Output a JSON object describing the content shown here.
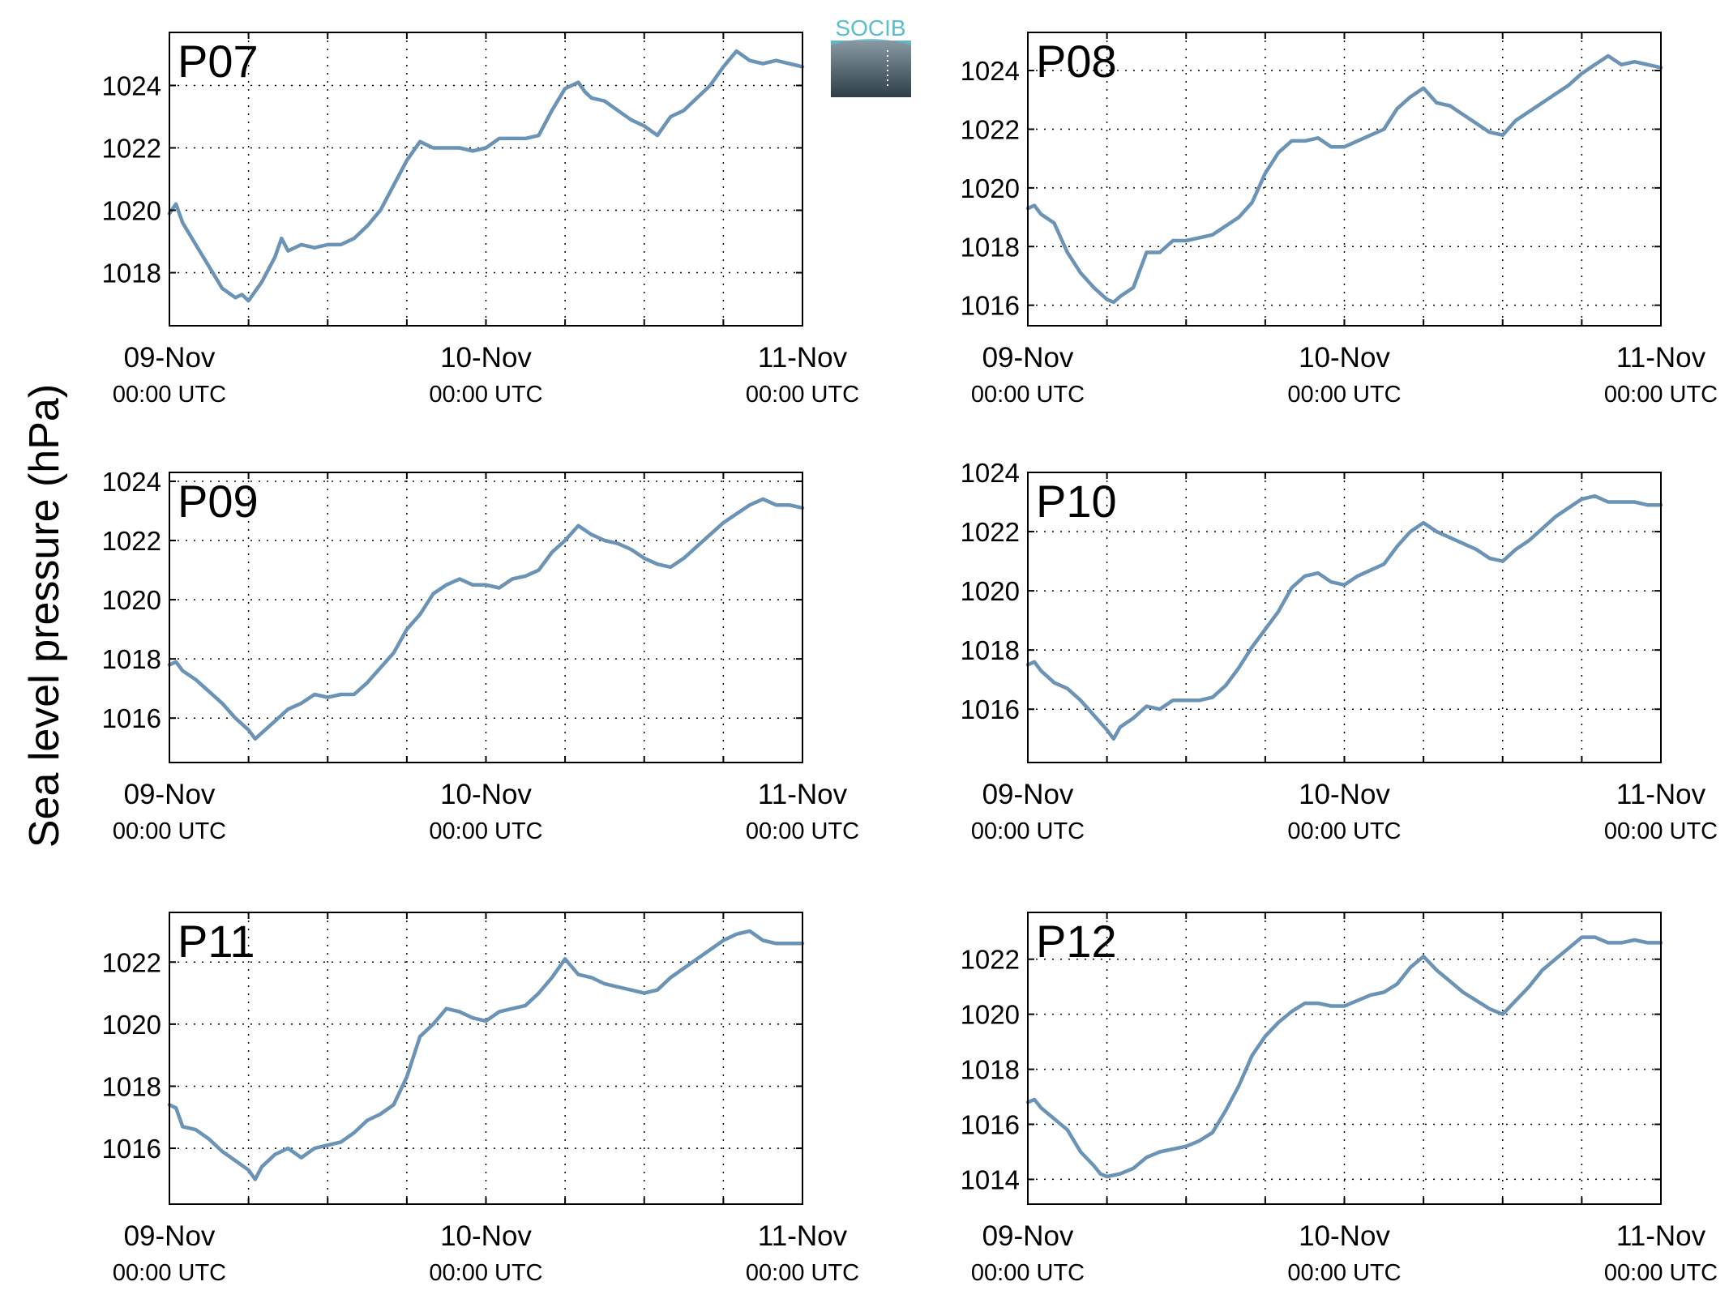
{
  "ylabel": "Sea level pressure (hPa)",
  "logo": {
    "text": "SOCIB",
    "text_color": "#5bbccc",
    "fill_top": "#8a9aa4",
    "fill_bottom": "#2e3e48"
  },
  "colors": {
    "line": "#6a93b5",
    "panel_label": "#ff0000",
    "axes": "#000000"
  },
  "xticks": [
    {
      "date": "09-Nov",
      "time": "00:00 UTC"
    },
    {
      "date": "10-Nov",
      "time": "00:00 UTC"
    },
    {
      "date": "11-Nov",
      "time": "00:00 UTC"
    }
  ],
  "chart_data": [
    {
      "type": "line",
      "label": "P07",
      "xlim": [
        0,
        48
      ],
      "ylim": [
        1016.3,
        1025.7
      ],
      "yticks": [
        1018,
        1020,
        1022,
        1024
      ],
      "grid": true,
      "x": [
        0,
        0.5,
        1,
        2,
        3,
        4,
        5,
        5.5,
        6,
        7,
        8,
        8.5,
        9,
        10,
        11,
        12,
        13,
        14,
        15,
        16,
        17,
        18,
        19,
        20,
        21,
        22,
        23,
        24,
        25,
        26,
        27,
        28,
        29,
        30,
        31,
        31.5,
        32,
        33,
        34,
        35,
        36,
        37,
        38,
        39,
        40,
        41,
        42,
        43,
        44,
        45,
        46,
        47,
        48
      ],
      "values": [
        1019.9,
        1020.2,
        1019.6,
        1018.9,
        1018.2,
        1017.5,
        1017.2,
        1017.3,
        1017.1,
        1017.7,
        1018.5,
        1019.1,
        1018.7,
        1018.9,
        1018.8,
        1018.9,
        1018.9,
        1019.1,
        1019.5,
        1020.0,
        1020.8,
        1021.6,
        1022.2,
        1022.0,
        1022.0,
        1022.0,
        1021.9,
        1022.0,
        1022.3,
        1022.3,
        1022.3,
        1022.4,
        1023.2,
        1023.9,
        1024.1,
        1023.8,
        1023.6,
        1023.5,
        1023.2,
        1022.9,
        1022.7,
        1022.4,
        1023.0,
        1023.2,
        1023.6,
        1024.0,
        1024.6,
        1025.1,
        1024.8,
        1024.7,
        1024.8,
        1024.7,
        1024.6
      ]
    },
    {
      "type": "line",
      "label": "P08",
      "xlim": [
        0,
        48
      ],
      "ylim": [
        1015.3,
        1025.3
      ],
      "yticks": [
        1016,
        1018,
        1020,
        1022,
        1024
      ],
      "grid": true,
      "x": [
        0,
        0.5,
        1,
        2,
        3,
        4,
        5,
        6,
        6.5,
        7,
        8,
        9,
        10,
        11,
        12,
        13,
        14,
        15,
        16,
        17,
        18,
        19,
        20,
        21,
        22,
        23,
        24,
        25,
        26,
        27,
        28,
        29,
        30,
        31,
        32,
        33,
        34,
        35,
        36,
        37,
        38,
        39,
        40,
        41,
        42,
        43,
        44,
        45,
        46,
        47,
        48
      ],
      "values": [
        1019.3,
        1019.4,
        1019.1,
        1018.8,
        1017.8,
        1017.1,
        1016.6,
        1016.2,
        1016.1,
        1016.3,
        1016.6,
        1017.8,
        1017.8,
        1018.2,
        1018.2,
        1018.3,
        1018.4,
        1018.7,
        1019.0,
        1019.5,
        1020.5,
        1021.2,
        1021.6,
        1021.6,
        1021.7,
        1021.4,
        1021.4,
        1021.6,
        1021.8,
        1022.0,
        1022.7,
        1023.1,
        1023.4,
        1022.9,
        1022.8,
        1022.5,
        1022.2,
        1021.9,
        1021.8,
        1022.3,
        1022.6,
        1022.9,
        1023.2,
        1023.5,
        1023.9,
        1024.2,
        1024.5,
        1024.2,
        1024.3,
        1024.2,
        1024.1
      ]
    },
    {
      "type": "line",
      "label": "P09",
      "xlim": [
        0,
        48
      ],
      "ylim": [
        1014.5,
        1024.3
      ],
      "yticks": [
        1016,
        1018,
        1020,
        1022,
        1024
      ],
      "grid": true,
      "x": [
        0,
        0.5,
        1,
        2,
        3,
        4,
        5,
        6,
        6.5,
        7,
        8,
        9,
        10,
        11,
        12,
        13,
        14,
        15,
        16,
        17,
        18,
        19,
        20,
        21,
        22,
        23,
        24,
        25,
        26,
        27,
        28,
        29,
        30,
        31,
        32,
        33,
        34,
        35,
        36,
        37,
        38,
        39,
        40,
        41,
        42,
        43,
        44,
        45,
        46,
        47,
        48
      ],
      "values": [
        1017.8,
        1017.9,
        1017.6,
        1017.3,
        1016.9,
        1016.5,
        1016.0,
        1015.6,
        1015.3,
        1015.5,
        1015.9,
        1016.3,
        1016.5,
        1016.8,
        1016.7,
        1016.8,
        1016.8,
        1017.2,
        1017.7,
        1018.2,
        1019.0,
        1019.5,
        1020.2,
        1020.5,
        1020.7,
        1020.5,
        1020.5,
        1020.4,
        1020.7,
        1020.8,
        1021.0,
        1021.6,
        1022.0,
        1022.5,
        1022.2,
        1022.0,
        1021.9,
        1021.7,
        1021.4,
        1021.2,
        1021.1,
        1021.4,
        1021.8,
        1022.2,
        1022.6,
        1022.9,
        1023.2,
        1023.4,
        1023.2,
        1023.2,
        1023.1
      ]
    },
    {
      "type": "line",
      "label": "P10",
      "xlim": [
        0,
        48
      ],
      "ylim": [
        1014.2,
        1024.0
      ],
      "yticks": [
        1016,
        1018,
        1020,
        1022,
        1024
      ],
      "grid": true,
      "x": [
        0,
        0.5,
        1,
        2,
        3,
        4,
        5,
        6,
        6.5,
        7,
        8,
        9,
        10,
        11,
        12,
        13,
        14,
        15,
        16,
        17,
        18,
        19,
        20,
        21,
        22,
        23,
        24,
        25,
        26,
        27,
        28,
        29,
        30,
        31,
        32,
        33,
        34,
        35,
        36,
        37,
        38,
        39,
        40,
        41,
        42,
        43,
        44,
        45,
        46,
        47,
        48
      ],
      "values": [
        1017.5,
        1017.6,
        1017.3,
        1016.9,
        1016.7,
        1016.3,
        1015.8,
        1015.3,
        1015.0,
        1015.4,
        1015.7,
        1016.1,
        1016.0,
        1016.3,
        1016.3,
        1016.3,
        1016.4,
        1016.8,
        1017.4,
        1018.1,
        1018.7,
        1019.3,
        1020.1,
        1020.5,
        1020.6,
        1020.3,
        1020.2,
        1020.5,
        1020.7,
        1020.9,
        1021.5,
        1022.0,
        1022.3,
        1022.0,
        1021.8,
        1021.6,
        1021.4,
        1021.1,
        1021.0,
        1021.4,
        1021.7,
        1022.1,
        1022.5,
        1022.8,
        1023.1,
        1023.2,
        1023.0,
        1023.0,
        1023.0,
        1022.9,
        1022.9
      ]
    },
    {
      "type": "line",
      "label": "P11",
      "xlim": [
        0,
        48
      ],
      "ylim": [
        1014.2,
        1023.6
      ],
      "yticks": [
        1016,
        1018,
        1020,
        1022
      ],
      "grid": true,
      "x": [
        0,
        0.5,
        1,
        2,
        3,
        4,
        5,
        6,
        6.5,
        7,
        8,
        9,
        10,
        11,
        12,
        13,
        14,
        15,
        16,
        17,
        18,
        19,
        20,
        21,
        22,
        23,
        24,
        25,
        26,
        27,
        28,
        29,
        30,
        31,
        32,
        33,
        34,
        35,
        36,
        37,
        38,
        39,
        40,
        41,
        42,
        43,
        44,
        45,
        46,
        47,
        48
      ],
      "values": [
        1017.4,
        1017.3,
        1016.7,
        1016.6,
        1016.3,
        1015.9,
        1015.6,
        1015.3,
        1015.0,
        1015.4,
        1015.8,
        1016.0,
        1015.7,
        1016.0,
        1016.1,
        1016.2,
        1016.5,
        1016.9,
        1017.1,
        1017.4,
        1018.3,
        1019.6,
        1020.0,
        1020.5,
        1020.4,
        1020.2,
        1020.1,
        1020.4,
        1020.5,
        1020.6,
        1021.0,
        1021.5,
        1022.1,
        1021.6,
        1021.5,
        1021.3,
        1021.2,
        1021.1,
        1021.0,
        1021.1,
        1021.5,
        1021.8,
        1022.1,
        1022.4,
        1022.7,
        1022.9,
        1023.0,
        1022.7,
        1022.6,
        1022.6,
        1022.6
      ]
    },
    {
      "type": "line",
      "label": "P12",
      "xlim": [
        0,
        48
      ],
      "ylim": [
        1013.1,
        1023.7
      ],
      "yticks": [
        1014,
        1016,
        1018,
        1020,
        1022
      ],
      "grid": true,
      "x": [
        0,
        0.5,
        1,
        2,
        3,
        4,
        5,
        5.5,
        6,
        7,
        8,
        9,
        10,
        11,
        12,
        13,
        14,
        15,
        16,
        17,
        18,
        19,
        20,
        21,
        22,
        23,
        24,
        25,
        26,
        27,
        28,
        29,
        30,
        31,
        32,
        33,
        34,
        35,
        36,
        37,
        38,
        39,
        40,
        41,
        42,
        43,
        44,
        45,
        46,
        47,
        48
      ],
      "values": [
        1016.8,
        1016.9,
        1016.6,
        1016.2,
        1015.8,
        1015.0,
        1014.5,
        1014.2,
        1014.1,
        1014.2,
        1014.4,
        1014.8,
        1015.0,
        1015.1,
        1015.2,
        1015.4,
        1015.7,
        1016.5,
        1017.4,
        1018.5,
        1019.2,
        1019.7,
        1020.1,
        1020.4,
        1020.4,
        1020.3,
        1020.3,
        1020.5,
        1020.7,
        1020.8,
        1021.1,
        1021.7,
        1022.1,
        1021.6,
        1021.2,
        1020.8,
        1020.5,
        1020.2,
        1020.0,
        1020.5,
        1021.0,
        1021.6,
        1022.0,
        1022.4,
        1022.8,
        1022.8,
        1022.6,
        1022.6,
        1022.7,
        1022.6,
        1022.6
      ]
    }
  ]
}
